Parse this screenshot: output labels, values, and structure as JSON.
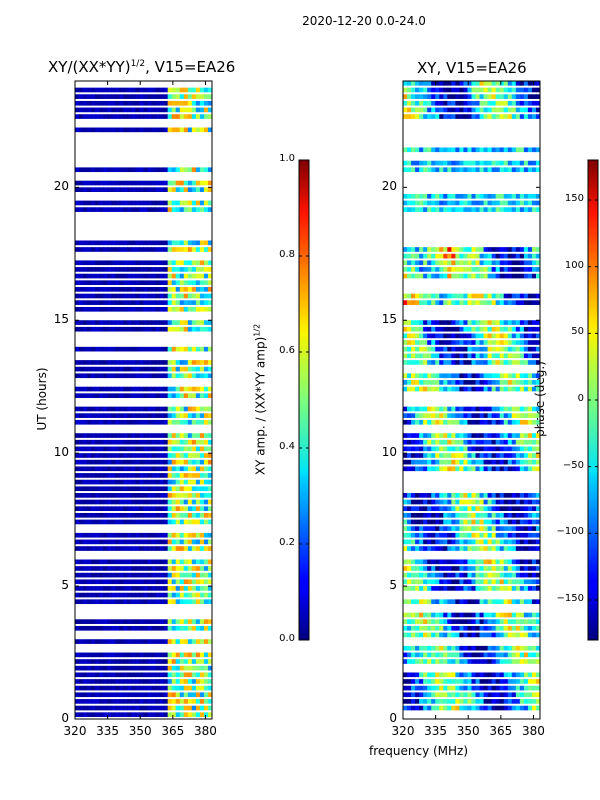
{
  "figure": {
    "suptitle": "2020-12-20 0.0-24.0",
    "xlabel": "frequency (MHz)"
  },
  "chart_data": [
    {
      "type": "heatmap",
      "title_main": "XY/(XX*YY)",
      "title_exponent": "1/2",
      "title_tail": ", V15=EA26",
      "ylabel": "UT (hours)",
      "xlim": [
        320,
        383
      ],
      "ylim": [
        0,
        24
      ],
      "xticks": [
        "320",
        "335",
        "350",
        "365",
        "380"
      ],
      "xtick_values": [
        320,
        335,
        350,
        365,
        380
      ],
      "yticks": [
        "0",
        "5",
        "10",
        "15",
        "20"
      ],
      "ytick_values": [
        0,
        5,
        10,
        15,
        20
      ],
      "blank_bands_hours": [
        [
          18.6,
          19.0
        ],
        [
          22.3,
          22.5
        ],
        [
          3.0,
          3.2
        ],
        [
          12.6,
          12.8
        ],
        [
          10.8,
          10.9
        ]
      ],
      "colorbar": {
        "label_main": "XY amp. / (XX*YY amp)",
        "label_exponent": "1/2",
        "range": [
          0.0,
          1.0
        ],
        "ticks": [
          "0.0",
          "0.2",
          "0.4",
          "0.6",
          "0.8",
          "1.0"
        ],
        "tick_values": [
          0.0,
          0.2,
          0.4,
          0.6,
          0.8,
          1.0
        ],
        "colormap": "jet"
      }
    },
    {
      "type": "heatmap",
      "title_main": "XY, V15=EA26",
      "ylabel": "",
      "xlim": [
        320,
        383
      ],
      "ylim": [
        0,
        24
      ],
      "xticks": [
        "320",
        "335",
        "350",
        "365",
        "380"
      ],
      "xtick_values": [
        320,
        335,
        350,
        365,
        380
      ],
      "yticks": [
        "0",
        "5",
        "10",
        "15",
        "20"
      ],
      "ytick_values": [
        0,
        5,
        10,
        15,
        20
      ],
      "blank_bands_hours": [
        [
          18.6,
          19.0
        ],
        [
          21.6,
          21.9
        ],
        [
          22.3,
          22.4
        ],
        [
          2.7,
          2.9
        ]
      ],
      "colorbar": {
        "label_main": "phase (deg.)",
        "range": [
          -180,
          180
        ],
        "ticks": [
          "−150",
          "−100",
          "−50",
          "0",
          "50",
          "100",
          "150"
        ],
        "tick_values": [
          -150,
          -100,
          -50,
          0,
          50,
          100,
          150
        ],
        "colormap": "jet"
      }
    }
  ]
}
